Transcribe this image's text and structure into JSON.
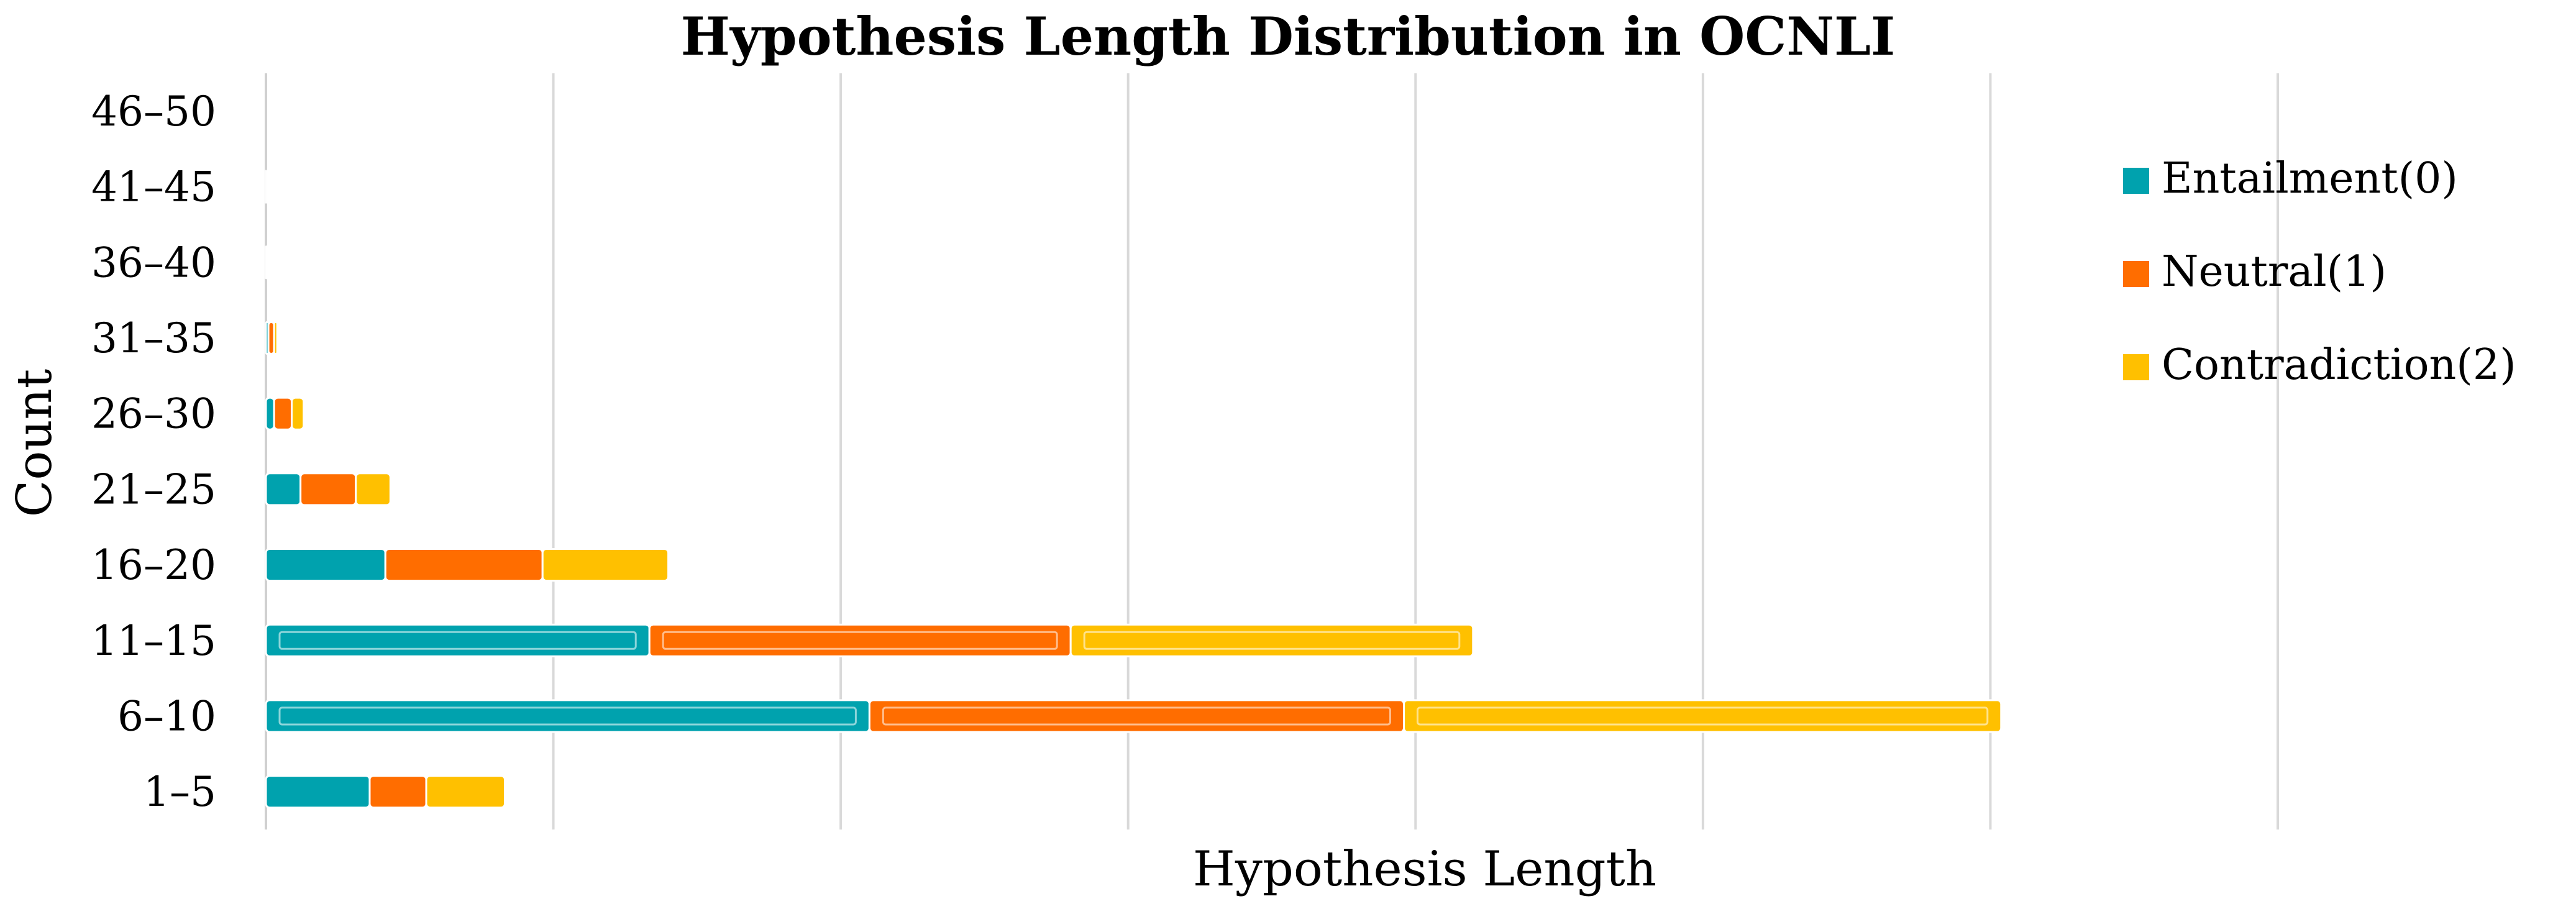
{
  "chart_data": {
    "type": "bar",
    "orientation": "horizontal",
    "stacked": true,
    "title": "Hypothesis Length Distribution in OCNLI",
    "xlabel": "Hypothesis Length",
    "ylabel": "Count",
    "categories": [
      "1–5",
      "6–10",
      "11–15",
      "16–20",
      "21–25",
      "26–30",
      "31–35",
      "36–40",
      "41–45",
      "46–50"
    ],
    "series": [
      {
        "name": "Entailment(0)",
        "color": "#00A2AE",
        "values": [
          1650,
          9600,
          6100,
          1900,
          550,
          130,
          40,
          8,
          0,
          0
        ]
      },
      {
        "name": "Neutral(1)",
        "color": "#FF6D00",
        "values": [
          900,
          8500,
          6700,
          2500,
          880,
          280,
          90,
          15,
          2,
          0
        ]
      },
      {
        "name": "Contradiction(2)",
        "color": "#FFC000",
        "values": [
          1250,
          9500,
          6400,
          2000,
          550,
          190,
          50,
          20,
          2,
          0
        ]
      }
    ],
    "xlim": [
      0,
      32000
    ],
    "grid": true,
    "legend_position": "right"
  }
}
